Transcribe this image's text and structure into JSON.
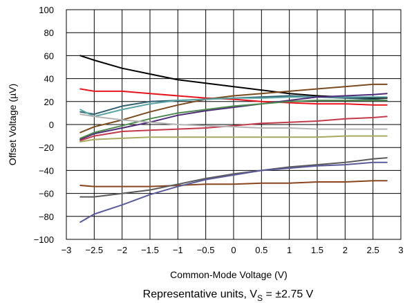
{
  "chart_data": {
    "type": "line",
    "title": "",
    "xlabel": "Common-Mode Voltage (V)",
    "ylabel": "Offset Voltage (µV)",
    "caption": {
      "prefix": "Representative units, V",
      "sub": "S",
      "suffix": " = ±2.75 V"
    },
    "xlim": [
      -3,
      3
    ],
    "ylim": [
      -100,
      100
    ],
    "x_ticks": [
      "−3",
      "−2.5",
      "−2",
      "−1.5",
      "−1",
      "−0.5",
      "0",
      "0.5",
      "1",
      "1.5",
      "2",
      "2.5",
      "3"
    ],
    "y_ticks": [
      "100",
      "80",
      "60",
      "40",
      "20",
      "0",
      "−20",
      "−40",
      "−60",
      "−80",
      "−100"
    ],
    "grid": true,
    "legend": "none",
    "x": [
      -2.75,
      -2.5,
      -2,
      -1.5,
      -1,
      -0.5,
      0,
      0.5,
      1,
      1.5,
      2,
      2.5,
      2.75
    ],
    "series": [
      {
        "color": "#000000",
        "values": [
          60,
          56,
          49,
          44,
          39,
          36,
          33,
          30,
          27,
          25,
          24,
          23,
          23
        ]
      },
      {
        "color": "#e8141c",
        "values": [
          31,
          29,
          29,
          27,
          25,
          23,
          22,
          20,
          19,
          18,
          18,
          17,
          17
        ]
      },
      {
        "color": "#7a4a1e",
        "values": [
          -7,
          -2,
          4,
          11,
          17,
          22,
          25,
          27,
          29,
          31,
          33,
          35,
          35
        ]
      },
      {
        "color": "#2f5f6e",
        "values": [
          11,
          9,
          16,
          20,
          21,
          22,
          23,
          24,
          25,
          24,
          23,
          22,
          21
        ]
      },
      {
        "color": "#5aa5a5",
        "values": [
          13,
          7,
          13,
          18,
          21,
          22,
          23,
          23,
          24,
          24,
          24,
          24,
          24
        ]
      },
      {
        "color": "#4e2a78",
        "values": [
          -13,
          -8,
          -3,
          2,
          8,
          12,
          15,
          18,
          21,
          24,
          25,
          26,
          27
        ]
      },
      {
        "color": "#4d8a4e",
        "values": [
          -12,
          -7,
          -1,
          5,
          10,
          13,
          16,
          18,
          20,
          21,
          21,
          21,
          21
        ]
      },
      {
        "color": "#c23a4a",
        "values": [
          -14,
          -10,
          -6,
          -5,
          -4,
          -3,
          -1,
          1,
          2,
          3,
          5,
          6,
          7
        ]
      },
      {
        "color": "#b4b4b4",
        "values": [
          9,
          7,
          4,
          2,
          0,
          -1,
          -2,
          -3,
          -3,
          -4,
          -4,
          -4,
          -4
        ]
      },
      {
        "color": "#a8a860",
        "values": [
          -15,
          -13,
          -12,
          -11,
          -11,
          -11,
          -11,
          -11,
          -11,
          -11,
          -10,
          -10,
          -10
        ]
      },
      {
        "color": "#8a4420",
        "values": [
          -53,
          -54,
          -54,
          -54,
          -53,
          -52,
          -52,
          -51,
          -51,
          -50,
          -50,
          -49,
          -49
        ]
      },
      {
        "color": "#5a5a5a",
        "values": [
          -63,
          -63,
          -60,
          -57,
          -52,
          -47,
          -43,
          -40,
          -37,
          -35,
          -33,
          -30,
          -29
        ]
      },
      {
        "color": "#5a5a9a",
        "values": [
          -85,
          -78,
          -70,
          -61,
          -54,
          -48,
          -44,
          -40,
          -38,
          -36,
          -35,
          -33,
          -33
        ]
      }
    ]
  }
}
